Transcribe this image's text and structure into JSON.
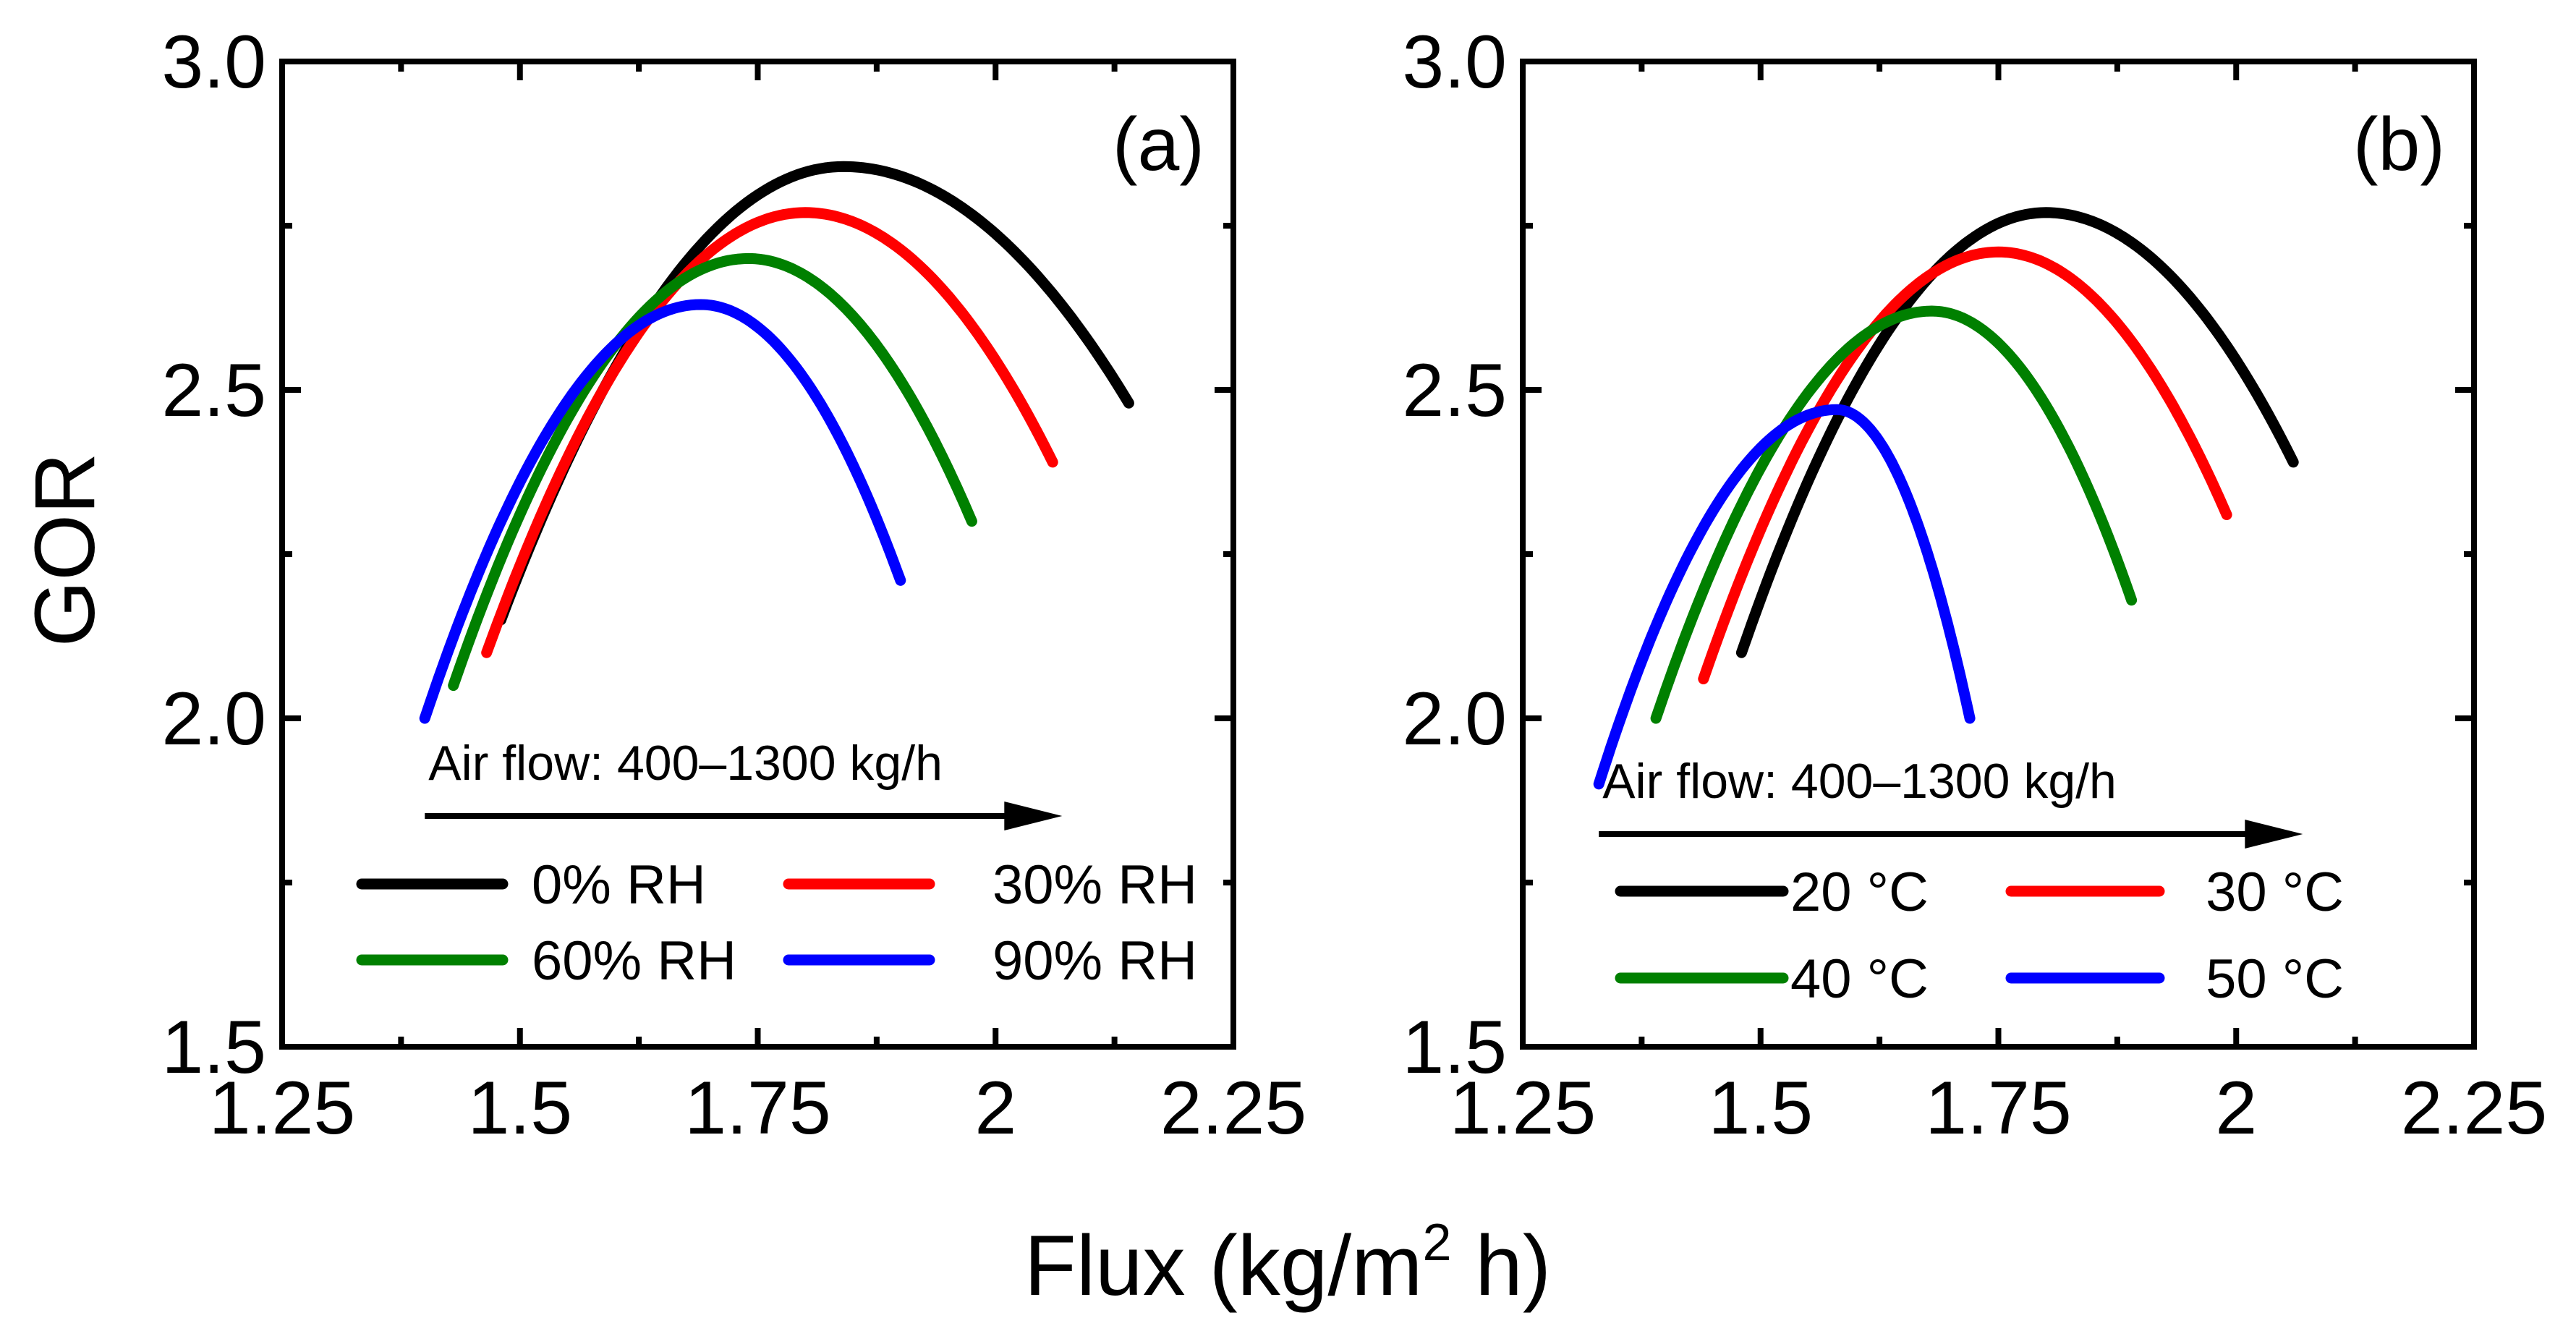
{
  "figure": {
    "ylabel": "GOR",
    "xlabel_main": "Flux (kg/m",
    "xlabel_sup": "2",
    "xlabel_tail": " h)"
  },
  "chart_data": [
    {
      "type": "line",
      "panel_label": "(a)",
      "xlabel": "Flux (kg/m2 h)",
      "ylabel": "GOR",
      "xlim": [
        1.25,
        2.25
      ],
      "ylim": [
        1.5,
        3.0
      ],
      "xticks": [
        1.25,
        1.5,
        1.75,
        2.0,
        2.25
      ],
      "xtick_labels": [
        "1.25",
        "1.5",
        "1.75",
        "2",
        "2.25"
      ],
      "yticks": [
        1.5,
        2.0,
        2.5,
        3.0
      ],
      "ytick_labels": [
        "1.5",
        "2.0",
        "2.5",
        "3.0"
      ],
      "annotation": "Air flow: 400–1300 kg/h",
      "annotation_arrow_x": [
        1.4,
        2.07
      ],
      "legend_columns": 2,
      "series": [
        {
          "name": "0% RH",
          "color": "#000000",
          "x_start": 1.48,
          "y_start": 2.15,
          "x_peak": 1.84,
          "y_peak": 2.84,
          "x_end": 2.14,
          "y_end": 2.48
        },
        {
          "name": "30% RH",
          "color": "#ff0000",
          "x_start": 1.465,
          "y_start": 2.1,
          "x_peak": 1.8,
          "y_peak": 2.77,
          "x_end": 2.06,
          "y_end": 2.39
        },
        {
          "name": "60% RH",
          "color": "#008000",
          "x_start": 1.43,
          "y_start": 2.05,
          "x_peak": 1.74,
          "y_peak": 2.7,
          "x_end": 1.975,
          "y_end": 2.3
        },
        {
          "name": "90% RH",
          "color": "#0000ff",
          "x_start": 1.4,
          "y_start": 2.0,
          "x_peak": 1.69,
          "y_peak": 2.63,
          "x_end": 1.9,
          "y_end": 2.21
        }
      ]
    },
    {
      "type": "line",
      "panel_label": "(b)",
      "xlabel": "Flux (kg/m2 h)",
      "ylabel": "GOR",
      "xlim": [
        1.25,
        2.25
      ],
      "ylim": [
        1.5,
        3.0
      ],
      "xticks": [
        1.25,
        1.5,
        1.75,
        2.0,
        2.25
      ],
      "xtick_labels": [
        "1.25",
        "1.5",
        "1.75",
        "2",
        "2.25"
      ],
      "yticks": [
        1.5,
        2.0,
        2.5,
        3.0
      ],
      "ytick_labels": [
        "1.5",
        "2.0",
        "2.5",
        "3.0"
      ],
      "annotation": "Air flow: 400–1300 kg/h",
      "annotation_arrow_x": [
        1.33,
        2.07
      ],
      "legend_columns": 2,
      "series": [
        {
          "name": "20 °C",
          "color": "#000000",
          "x_start": 1.48,
          "y_start": 2.1,
          "x_peak": 1.8,
          "y_peak": 2.77,
          "x_end": 2.06,
          "y_end": 2.39
        },
        {
          "name": "30 °C",
          "color": "#ff0000",
          "x_start": 1.44,
          "y_start": 2.06,
          "x_peak": 1.75,
          "y_peak": 2.71,
          "x_end": 1.99,
          "y_end": 2.31
        },
        {
          "name": "40 °C",
          "color": "#008000",
          "x_start": 1.39,
          "y_start": 2.0,
          "x_peak": 1.68,
          "y_peak": 2.62,
          "x_end": 1.89,
          "y_end": 2.18
        },
        {
          "name": "50 °C",
          "color": "#0000ff",
          "x_start": 1.33,
          "y_start": 1.9,
          "x_peak": 1.58,
          "y_peak": 2.47,
          "x_end": 1.72,
          "y_end": 2.0
        }
      ]
    }
  ]
}
